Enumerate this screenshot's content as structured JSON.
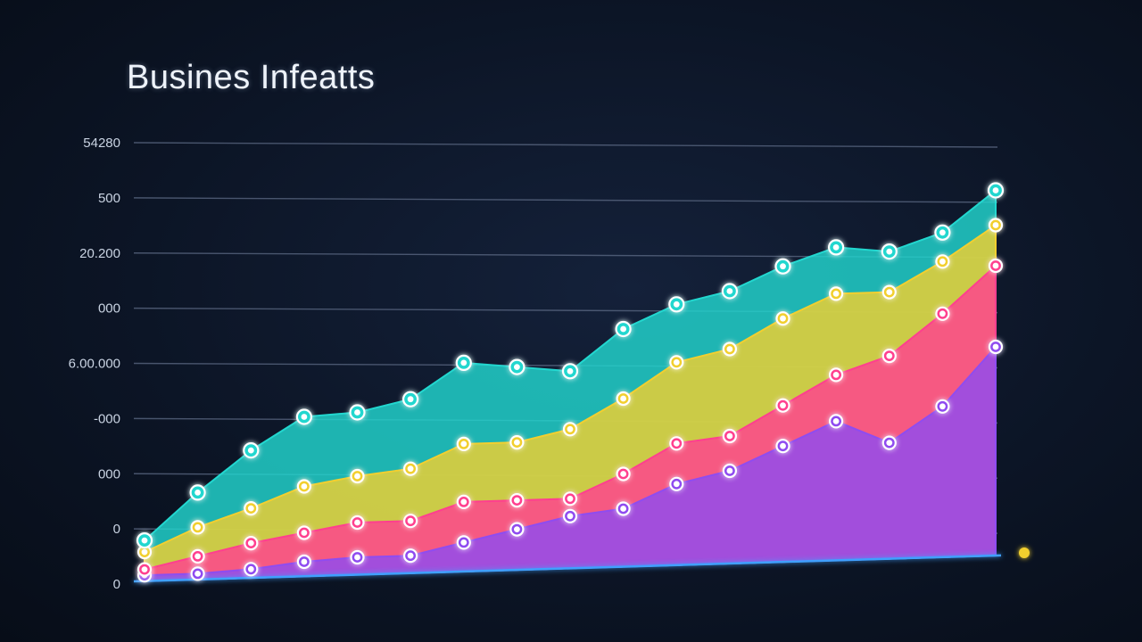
{
  "chart_data": {
    "type": "area",
    "title": "Busines Infeatts",
    "xlabel": "",
    "ylabel": "",
    "y_tick_labels": [
      "0",
      "0",
      "000",
      "-000",
      "6.00.000",
      "000",
      "20.200",
      "500",
      "54280"
    ],
    "grid": true,
    "stacked": true,
    "x": [
      0,
      1,
      2,
      3,
      4,
      5,
      6,
      7,
      8,
      9,
      10,
      11,
      12,
      13,
      14,
      15,
      16
    ],
    "series": [
      {
        "color": "#8f4cf0",
        "values": [
          0.1,
          0.1,
          0.15,
          0.25,
          0.3,
          0.3,
          0.5,
          0.7,
          0.9,
          1.0,
          1.4,
          1.6,
          2.0,
          2.4,
          2.0,
          2.6,
          3.6
        ]
      },
      {
        "color": "#ff3f8f",
        "values": [
          0.1,
          0.3,
          0.45,
          0.5,
          0.6,
          0.6,
          0.7,
          0.5,
          0.3,
          0.6,
          0.7,
          0.6,
          0.7,
          0.8,
          1.5,
          1.6,
          1.4
        ]
      },
      {
        "color": "#f2cf2f",
        "values": [
          0.3,
          0.5,
          0.6,
          0.8,
          0.8,
          0.9,
          1.0,
          1.0,
          1.2,
          1.3,
          1.4,
          1.5,
          1.5,
          1.4,
          1.1,
          0.9,
          0.7
        ]
      },
      {
        "color": "#22d7cf",
        "values": [
          0.2,
          0.6,
          1.0,
          1.2,
          1.1,
          1.2,
          1.4,
          1.3,
          1.0,
          1.2,
          1.0,
          1.0,
          0.9,
          0.8,
          0.7,
          0.5,
          0.6
        ]
      }
    ]
  }
}
